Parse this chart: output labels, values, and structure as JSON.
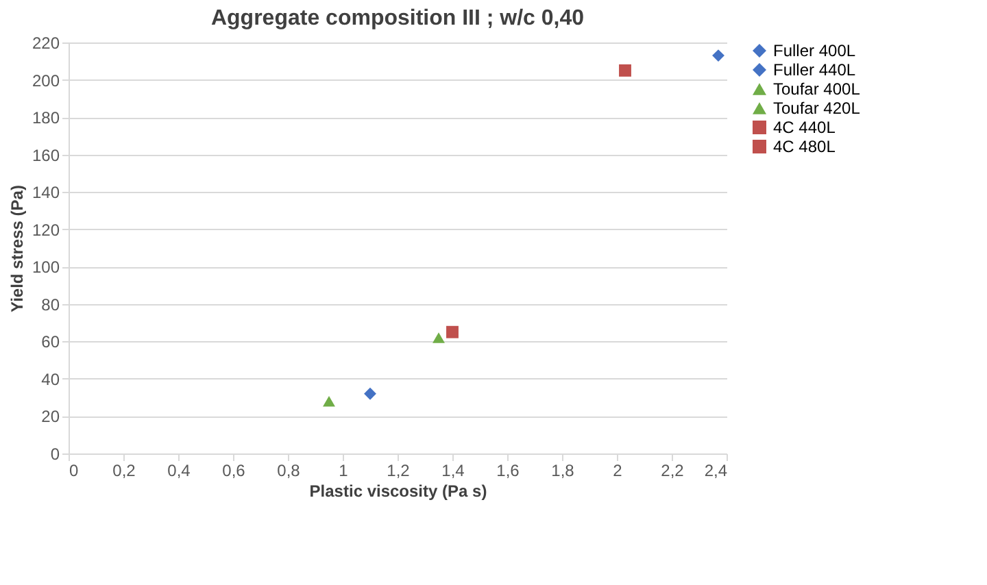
{
  "chart_data": {
    "type": "scatter",
    "title": "Aggregate composition III ; w/c 0,40",
    "xlabel": "Plastic viscosity (Pa s)",
    "ylabel": "Yield stress (Pa)",
    "series": [
      {
        "name": "Fuller 400L",
        "color": "#4472c4",
        "marker": "diamond",
        "x": [
          2.37
        ],
        "values": [
          213
        ]
      },
      {
        "name": "Fuller 440L",
        "color": "#4472c4",
        "marker": "diamond",
        "x": [
          1.1
        ],
        "values": [
          32
        ]
      },
      {
        "name": "Toufar 400L",
        "color": "#70ad47",
        "marker": "triangle",
        "x": [
          1.35
        ],
        "values": [
          62
        ]
      },
      {
        "name": "Toufar 420L",
        "color": "#70ad47",
        "marker": "triangle",
        "x": [
          0.95
        ],
        "values": [
          28
        ]
      },
      {
        "name": "4C 440L",
        "color": "#c0504d",
        "marker": "square",
        "x": [
          2.03
        ],
        "values": [
          205
        ]
      },
      {
        "name": "4C 480L",
        "color": "#c0504d",
        "marker": "square",
        "x": [
          1.4
        ],
        "values": [
          65
        ]
      }
    ],
    "xlim": [
      0,
      2.4
    ],
    "xticks": [
      {
        "value": 0,
        "label": "0"
      },
      {
        "value": 0.2,
        "label": "0,2"
      },
      {
        "value": 0.4,
        "label": "0,4"
      },
      {
        "value": 0.6,
        "label": "0,6"
      },
      {
        "value": 0.8,
        "label": "0,8"
      },
      {
        "value": 1,
        "label": "1"
      },
      {
        "value": 1.2,
        "label": "1,2"
      },
      {
        "value": 1.4,
        "label": "1,4"
      },
      {
        "value": 1.6,
        "label": "1,6"
      },
      {
        "value": 1.8,
        "label": "1,8"
      },
      {
        "value": 2,
        "label": "2"
      },
      {
        "value": 2.2,
        "label": "2,2"
      },
      {
        "value": 2.4,
        "label": "2,4"
      }
    ],
    "ylim": [
      0,
      220
    ],
    "yticks": [
      0,
      20,
      40,
      60,
      80,
      100,
      120,
      140,
      160,
      180,
      200,
      220
    ],
    "grid": "y",
    "legend": "right"
  }
}
